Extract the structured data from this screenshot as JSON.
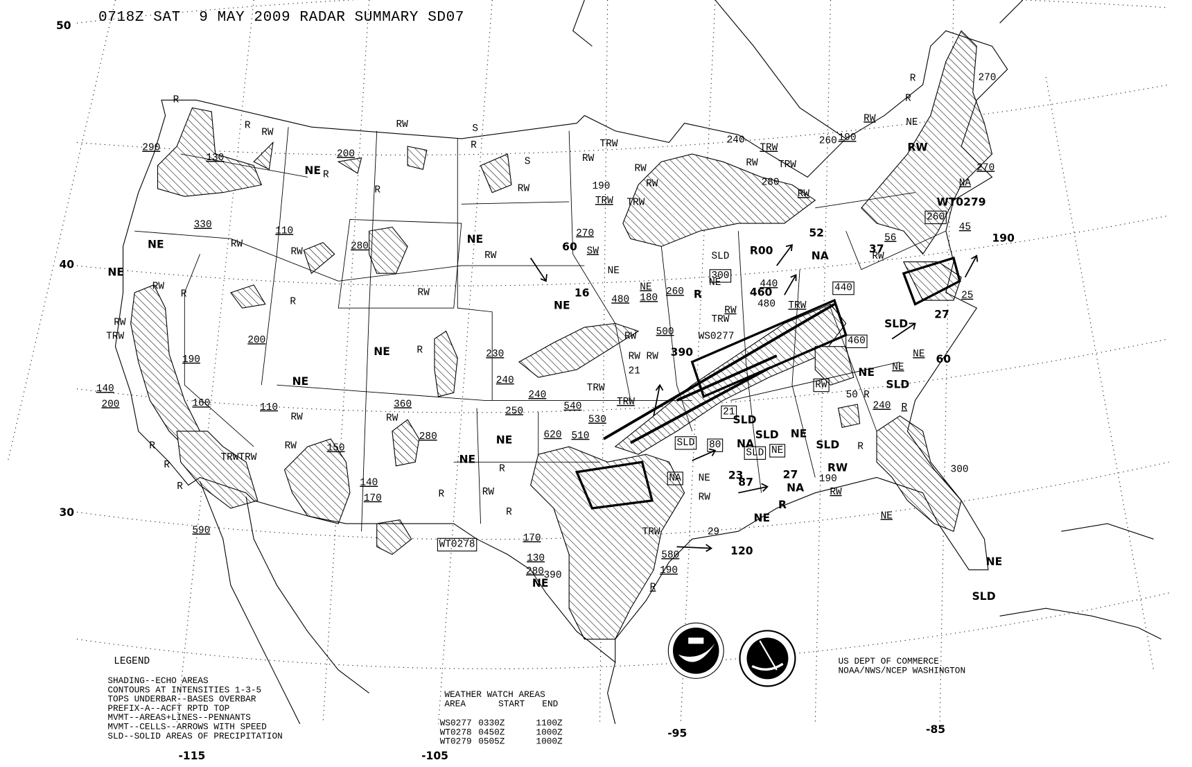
{
  "title": "0718Z SAT  9 MAY 2009 RADAR SUMMARY SD07",
  "lat_labels": [
    "50",
    "40",
    "30"
  ],
  "lon_labels": [
    "-115",
    "-105",
    "-95",
    "-85"
  ],
  "legend": {
    "heading": "LEGEND",
    "lines": [
      "SHADING--ECHO AREAS",
      "CONTOURS AT INTENSITIES 1-3-5",
      "TOPS UNDERBAR--BASES OVERBAR",
      "PREFIX-A--ACFT RPTD TOP",
      "MVMT--AREAS+LINES--PENNANTS",
      "MVMT--CELLS--ARROWS WITH SPEED",
      "SLD--SOLID AREAS OF PRECIPITATION"
    ]
  },
  "watch_table": {
    "heading": "WEATHER WATCH AREAS",
    "columns": [
      "AREA",
      "START",
      "END"
    ],
    "rows": [
      {
        "area": "WS0277",
        "start": "0330Z",
        "end": "1100Z"
      },
      {
        "area": "WT0278",
        "start": "0450Z",
        "end": "1000Z"
      },
      {
        "area": "WT0279",
        "start": "0505Z",
        "end": "1000Z"
      }
    ]
  },
  "credit": {
    "line1": "US DEPT OF COMMERCE",
    "line2": "NOAA/NWS/NCEP WASHINGTON"
  },
  "logos": {
    "noaa": "NOAA",
    "nws": "NATIONAL WEATHER SERVICE"
  },
  "colors": {
    "ink": "#000000",
    "background": "#ffffff"
  },
  "map_labels": [
    "R",
    "290",
    "130",
    "330",
    "NE",
    "NE",
    "RW",
    "R",
    "RW",
    "TRW",
    "190",
    "140",
    "200",
    "160",
    "110",
    "R",
    "R",
    "R",
    "TRWTRW",
    "590",
    "R",
    "RW",
    "NE",
    "R",
    "200",
    "R",
    "RW",
    "110",
    "RW",
    "280",
    "200",
    "R",
    "NE",
    "RW",
    "RW",
    "150",
    "140",
    "170",
    "RW",
    "S",
    "R",
    "S",
    "RW",
    "NE",
    "RW",
    "RW",
    "R",
    "NE",
    "230",
    "240",
    "240",
    "360",
    "RW",
    "280",
    "NE",
    "NE",
    "250",
    "R",
    "RW",
    "R",
    "R",
    "WT0278",
    "170",
    "130",
    "280",
    "NE",
    "390",
    "620",
    "510",
    "540",
    "530",
    "TRW",
    "TRW",
    "RW RW",
    "21",
    "390",
    "500",
    "480",
    "180",
    "260",
    "NE",
    "16",
    "NE",
    "60",
    "270",
    "SW",
    "TRW",
    "RW",
    "190",
    "TRW",
    "TRW",
    "RW",
    "RW",
    "240",
    "TRW",
    "RW",
    "TRW",
    "280",
    "RW",
    "260",
    "190",
    "RW",
    "R",
    "R",
    "NE",
    "RW",
    "270",
    "270",
    "NA",
    "WT0279",
    "260",
    "45",
    "190",
    "56",
    "37",
    "52",
    "NA",
    "R00",
    "SLD",
    "300",
    "NE",
    "R",
    "NE",
    "460",
    "440",
    "TRW",
    "480",
    "RW",
    "TRW",
    "WS0277",
    "440",
    "25",
    "27",
    "SLD",
    "460",
    "NE",
    "60",
    "NE",
    "NE",
    "SLD",
    "RW",
    "R",
    "50",
    "240",
    "R",
    "R",
    "300",
    "NE",
    "NE",
    "SLD",
    "21",
    "SLD",
    "SLD",
    "80",
    "NA",
    "SLD",
    "SLD",
    "NE",
    "NE",
    "SLD",
    "NA",
    "23",
    "87",
    "27",
    "NA",
    "RW",
    "190",
    "RW",
    "RW",
    "NE",
    "NE",
    "R",
    "29",
    "120",
    "580",
    "190",
    "R",
    "TRW",
    "RW",
    "RW"
  ]
}
